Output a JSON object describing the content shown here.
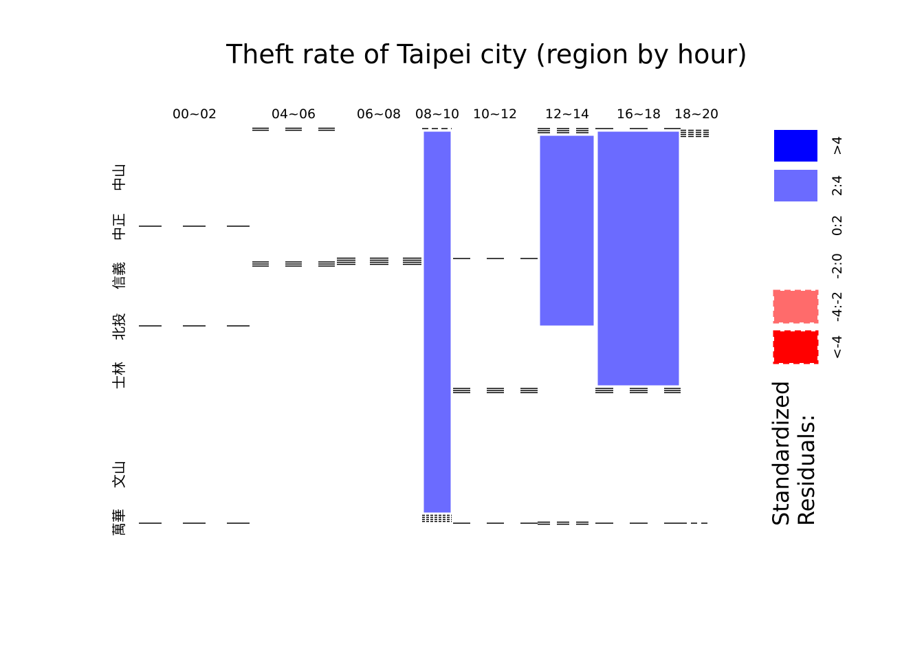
{
  "chart_data": {
    "type": "mosaic",
    "title": "Theft rate of Taipei city (region by hour)",
    "hour_columns": [
      "00~02",
      "04~06",
      "06~08",
      "08~10",
      "10~12",
      "12~14",
      "16~18",
      "18~20"
    ],
    "region_rows": [
      "中山",
      "中正",
      "信義",
      "北投",
      "士林",
      "文山",
      "萬華"
    ],
    "shaded_cells": [
      {
        "hour": "08~10",
        "residual_class": "2:4"
      },
      {
        "hour": "12~14",
        "residual_class": "2:4"
      },
      {
        "hour": "16~18",
        "residual_class": "2:4"
      }
    ],
    "legend": {
      "title_line1": "Standardized",
      "title_line2": "Residuals:",
      "classes": [
        {
          "label": ">4",
          "color": "#0000FF"
        },
        {
          "label": "2:4",
          "color": "#6B6BFF"
        },
        {
          "label": "0:2",
          "color": "#FFFFFF"
        },
        {
          "label": "-2:0",
          "color": "#FFFFFF"
        },
        {
          "label": "-4:-2",
          "color": "#FF6B6B"
        },
        {
          "label": "<-4",
          "color": "#FF0000"
        }
      ]
    },
    "grid": false
  }
}
